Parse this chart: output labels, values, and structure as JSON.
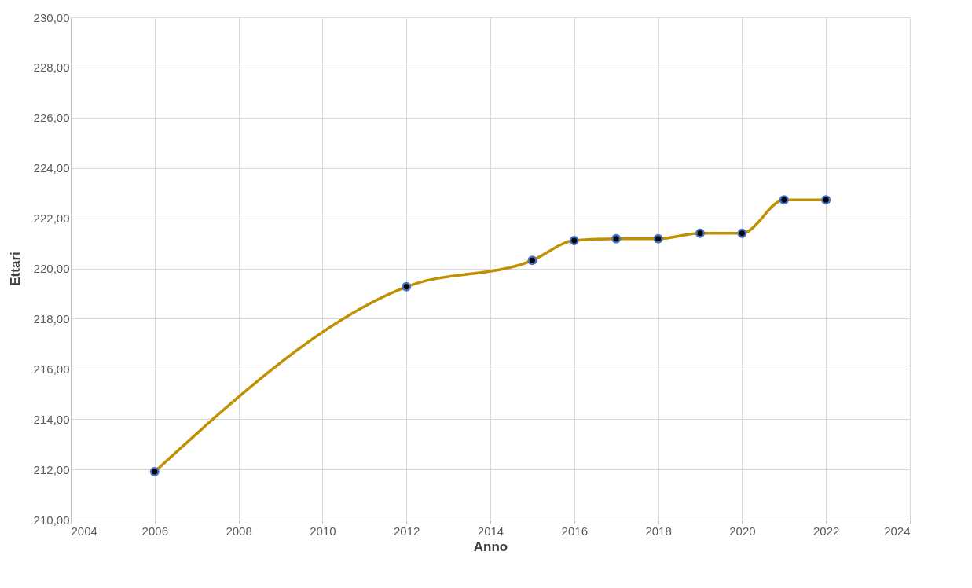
{
  "chart_data": {
    "type": "line",
    "xlabel": "Anno",
    "ylabel": "Ettari",
    "x": [
      2006,
      2012,
      2015,
      2016,
      2017,
      2018,
      2019,
      2020,
      2021,
      2022
    ],
    "series": [
      {
        "color": "#bf9000",
        "values": [
          211.91,
          219.27,
          220.32,
          221.11,
          221.18,
          221.18,
          221.4,
          221.4,
          222.73,
          222.73
        ]
      }
    ],
    "xlim": [
      2004,
      2024
    ],
    "xticks": [
      2004,
      2006,
      2008,
      2010,
      2012,
      2014,
      2016,
      2018,
      2020,
      2022,
      2024
    ],
    "ylim": [
      210,
      230
    ],
    "yticks": [
      {
        "value": 210,
        "label": "210,00"
      },
      {
        "value": 212,
        "label": "212,00"
      },
      {
        "value": 214,
        "label": "214,00"
      },
      {
        "value": 216,
        "label": "216,00"
      },
      {
        "value": 218,
        "label": "218,00"
      },
      {
        "value": 220,
        "label": "220,00"
      },
      {
        "value": 222,
        "label": "222,00"
      },
      {
        "value": 224,
        "label": "224,00"
      },
      {
        "value": 226,
        "label": "226,00"
      },
      {
        "value": 228,
        "label": "228,00"
      },
      {
        "value": 230,
        "label": "230,00"
      }
    ],
    "grid": true,
    "marker": "circle",
    "line_style": "solid"
  }
}
